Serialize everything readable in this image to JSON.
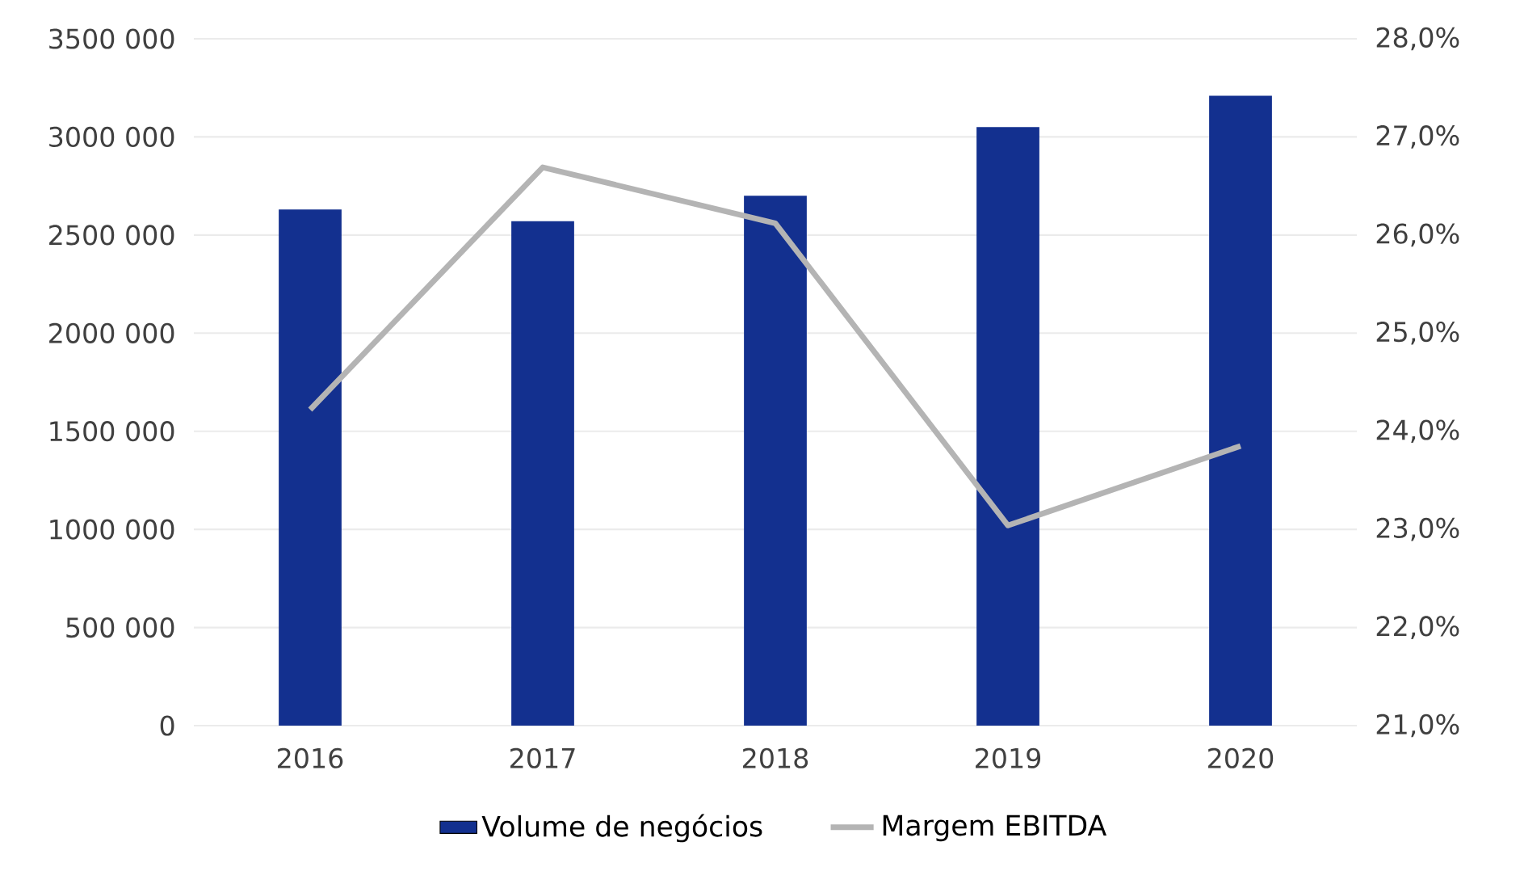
{
  "chart_data": {
    "type": "bar",
    "categories": [
      "2016",
      "2017",
      "2018",
      "2019",
      "2020"
    ],
    "series": [
      {
        "name": "Volume de negócios",
        "color": "#13308f",
        "values": [
          2630000,
          2570000,
          2700000,
          3050000,
          3210000
        ]
      },
      {
        "name": "Margem EBITDA",
        "type": "line",
        "axis": "y2",
        "color": "#b4b4b4",
        "values": [
          24.22,
          26.69,
          26.12,
          23.04,
          23.85
        ]
      }
    ],
    "ylim": [
      0,
      3500000
    ],
    "yticks": [
      {
        "value": 0,
        "label": "0"
      },
      {
        "value": 500000,
        "label": "500 000"
      },
      {
        "value": 1000000,
        "label": "1000 000"
      },
      {
        "value": 1500000,
        "label": "1500 000"
      },
      {
        "value": 2000000,
        "label": "2000 000"
      },
      {
        "value": 2500000,
        "label": "2500 000"
      },
      {
        "value": 3000000,
        "label": "3000 000"
      },
      {
        "value": 3500000,
        "label": "3500 000"
      }
    ],
    "y2lim": [
      21,
      28
    ],
    "y2ticks": [
      {
        "value": 21,
        "label": "21,0%"
      },
      {
        "value": 22,
        "label": "22,0%"
      },
      {
        "value": 23,
        "label": "23,0%"
      },
      {
        "value": 24,
        "label": "24,0%"
      },
      {
        "value": 25,
        "label": "25,0%"
      },
      {
        "value": 26,
        "label": "26,0%"
      },
      {
        "value": 27,
        "label": "27,0%"
      },
      {
        "value": 28,
        "label": "28,0%"
      }
    ],
    "grid": "y",
    "legend": "bottom"
  }
}
